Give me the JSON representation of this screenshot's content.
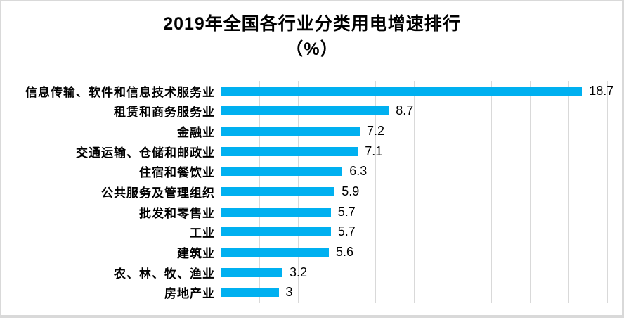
{
  "chart_data": {
    "type": "bar",
    "orientation": "horizontal",
    "title": "2019年全国各行业分类用电增速排行",
    "title_line2": "（%）",
    "categories": [
      "信息传输、软件和信息技术服务业",
      "租赁和商务服务业",
      "金融业",
      "交通运输、仓储和邮政业",
      "住宿和餐饮业",
      "公共服务及管理组织",
      "批发和零售业",
      "工业",
      "建筑业",
      "农、林、牧、渔业",
      "房地产业"
    ],
    "values": [
      18.7,
      8.7,
      7.2,
      7.1,
      6.3,
      5.9,
      5.7,
      5.7,
      5.6,
      3.2,
      3
    ],
    "value_labels": [
      "18.7",
      "8.7",
      "7.2",
      "7.1",
      "6.3",
      "5.9",
      "5.7",
      "5.7",
      "5.6",
      "3.2",
      "3"
    ],
    "xlabel": "",
    "ylabel": "",
    "xlim": [
      0,
      20
    ],
    "grid_step": 2,
    "grid": true,
    "legend_position": "none",
    "bar_color": "#00B0F0",
    "gridline_color": "#D9D9D9",
    "border_color": "#D9D9D9",
    "text_color": "#000000",
    "background_color": "#FFFFFF"
  }
}
